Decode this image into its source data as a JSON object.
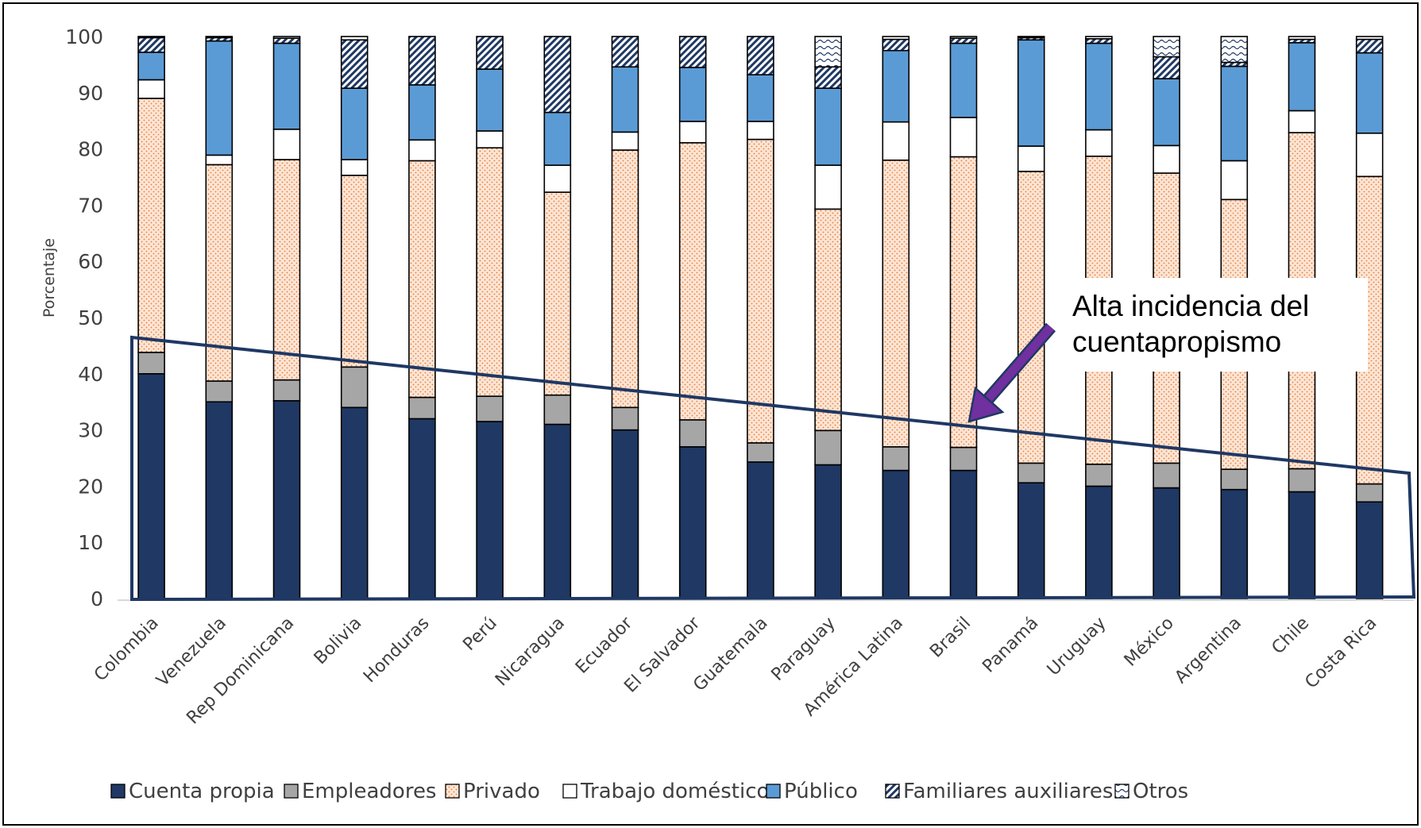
{
  "chart_data": {
    "type": "bar",
    "stacked": true,
    "title": "",
    "xlabel": "",
    "ylabel": "Porcentaje",
    "ylim": [
      0,
      100
    ],
    "yticks": [
      0,
      10,
      20,
      30,
      40,
      50,
      60,
      70,
      80,
      90,
      100
    ],
    "grid": false,
    "legend_position": "bottom",
    "categories": [
      "Colombia",
      "Venezuela",
      "Rep Dominicana",
      "Bolivia",
      "Honduras",
      "Perú",
      "Nicaragua",
      "Ecuador",
      "El Salvador",
      "Guatemala",
      "Paraguay",
      "América Latina",
      "Brasil",
      "Panamá",
      "Uruguay",
      "México",
      "Argentina",
      "Chile",
      "Costa Rica"
    ],
    "series": [
      {
        "name": "Cuenta propia",
        "color": "#1f3864",
        "pattern": "solid",
        "values": [
          40.0,
          35.0,
          35.2,
          34.0,
          32.0,
          31.5,
          31.0,
          30.0,
          27.0,
          24.3,
          23.8,
          22.8,
          22.8,
          20.6,
          20.0,
          19.7,
          19.4,
          19.0,
          17.2
        ]
      },
      {
        "name": "Empleadores",
        "color": "#a6a6a6",
        "pattern": "solid",
        "values": [
          3.8,
          3.7,
          3.7,
          7.2,
          3.8,
          4.5,
          5.2,
          4.0,
          4.8,
          3.4,
          6.1,
          4.2,
          4.1,
          3.5,
          3.9,
          4.4,
          3.6,
          4.1,
          3.2
        ]
      },
      {
        "name": "Privado",
        "color": "#f4b183",
        "pattern": "dots",
        "values": [
          45.2,
          38.5,
          39.2,
          34.1,
          42.1,
          44.2,
          36.1,
          45.8,
          49.3,
          54.0,
          39.4,
          51.0,
          51.7,
          51.9,
          54.8,
          51.6,
          48.0,
          59.8,
          54.7
        ]
      },
      {
        "name": "Trabajo doméstico",
        "color": "#ffffff",
        "pattern": "solid",
        "values": [
          3.3,
          1.7,
          5.4,
          2.8,
          3.7,
          3.0,
          4.8,
          3.2,
          3.8,
          3.2,
          7.8,
          6.8,
          7.0,
          4.5,
          4.7,
          4.9,
          6.9,
          3.9,
          7.7
        ]
      },
      {
        "name": "Público",
        "color": "#5b9bd5",
        "pattern": "solid",
        "values": [
          4.9,
          20.3,
          15.3,
          12.7,
          9.8,
          11.0,
          9.4,
          11.6,
          9.6,
          8.3,
          13.7,
          12.7,
          13.2,
          18.9,
          15.4,
          11.9,
          16.8,
          12.1,
          14.3
        ]
      },
      {
        "name": "Familiares auxiliares",
        "color": "#1f3864",
        "pattern": "diag",
        "values": [
          2.6,
          0.6,
          0.9,
          8.6,
          8.6,
          5.8,
          13.5,
          5.4,
          5.5,
          6.8,
          3.8,
          2.0,
          0.9,
          0.4,
          0.8,
          3.9,
          0.7,
          0.6,
          2.4
        ]
      },
      {
        "name": "Otros",
        "color": "#1f3864",
        "pattern": "wave",
        "values": [
          0.2,
          0.2,
          0.3,
          0.6,
          0.0,
          0.0,
          0.0,
          0.0,
          0.0,
          0.0,
          5.4,
          0.5,
          0.3,
          0.2,
          0.4,
          3.6,
          4.6,
          0.5,
          0.5
        ]
      }
    ],
    "annotation": {
      "text_lines": [
        "Alta incidencia del",
        "cuentapropismo"
      ],
      "arrow_color": "#7030a0",
      "highlight_outline_color": "#1f3864"
    }
  }
}
